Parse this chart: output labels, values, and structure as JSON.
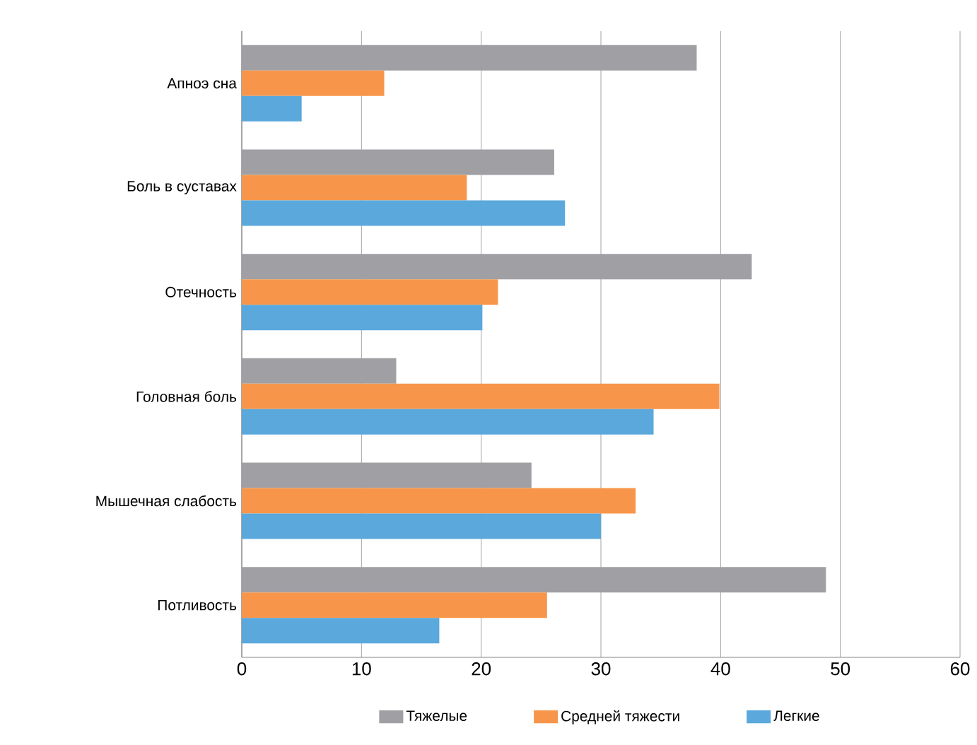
{
  "chart_data": {
    "type": "bar",
    "orientation": "horizontal",
    "categories": [
      "Апноэ сна",
      "Боль в суставах",
      "Отечность",
      "Головная боль",
      "Мышечная слабость",
      "Потливость"
    ],
    "series": [
      {
        "name": "Тяжелые",
        "color": "#a0a0a4",
        "values": [
          38,
          26.1,
          42.6,
          12.9,
          24.2,
          48.8
        ]
      },
      {
        "name": "Средней тяжести",
        "color": "#f7964a",
        "values": [
          11.9,
          18.8,
          21.4,
          39.9,
          32.9,
          25.5
        ]
      },
      {
        "name": "Легкие",
        "color": "#5aa8dc",
        "values": [
          5,
          27,
          20.1,
          34.4,
          30,
          16.5
        ]
      }
    ],
    "xlim": [
      0,
      60
    ],
    "xticks": [
      0,
      10,
      20,
      30,
      40,
      50,
      60
    ],
    "grid": "x",
    "legend": "bottom"
  }
}
